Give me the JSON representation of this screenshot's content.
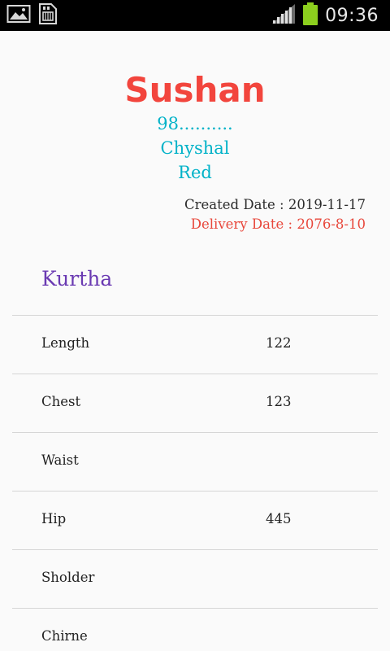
{
  "status_bar": {
    "time": "09:36",
    "left_icons": [
      "image-icon",
      "sd-card-icon"
    ],
    "right_icons": [
      "signal-icon",
      "battery-icon"
    ],
    "battery_color": "#8ccf1e"
  },
  "customer": {
    "name": "Sushan",
    "phone": "98..........",
    "place": "Chyshal",
    "color": "Red"
  },
  "dates": {
    "created": "Created Date : 2019-11-17",
    "delivery": "Delivery Date : 2076-8-10"
  },
  "section": {
    "title": "Kurtha"
  },
  "measurements": [
    {
      "label": "Length",
      "value": "122"
    },
    {
      "label": "Chest",
      "value": "123"
    },
    {
      "label": "Waist",
      "value": ""
    },
    {
      "label": "Hip",
      "value": "445"
    },
    {
      "label": "Sholder",
      "value": ""
    },
    {
      "label": "Chirne",
      "value": ""
    }
  ],
  "colors": {
    "name": "#f2453d",
    "subtext": "#00b2c8",
    "delivery": "#e8473b",
    "section_title": "#6a3ab2"
  }
}
